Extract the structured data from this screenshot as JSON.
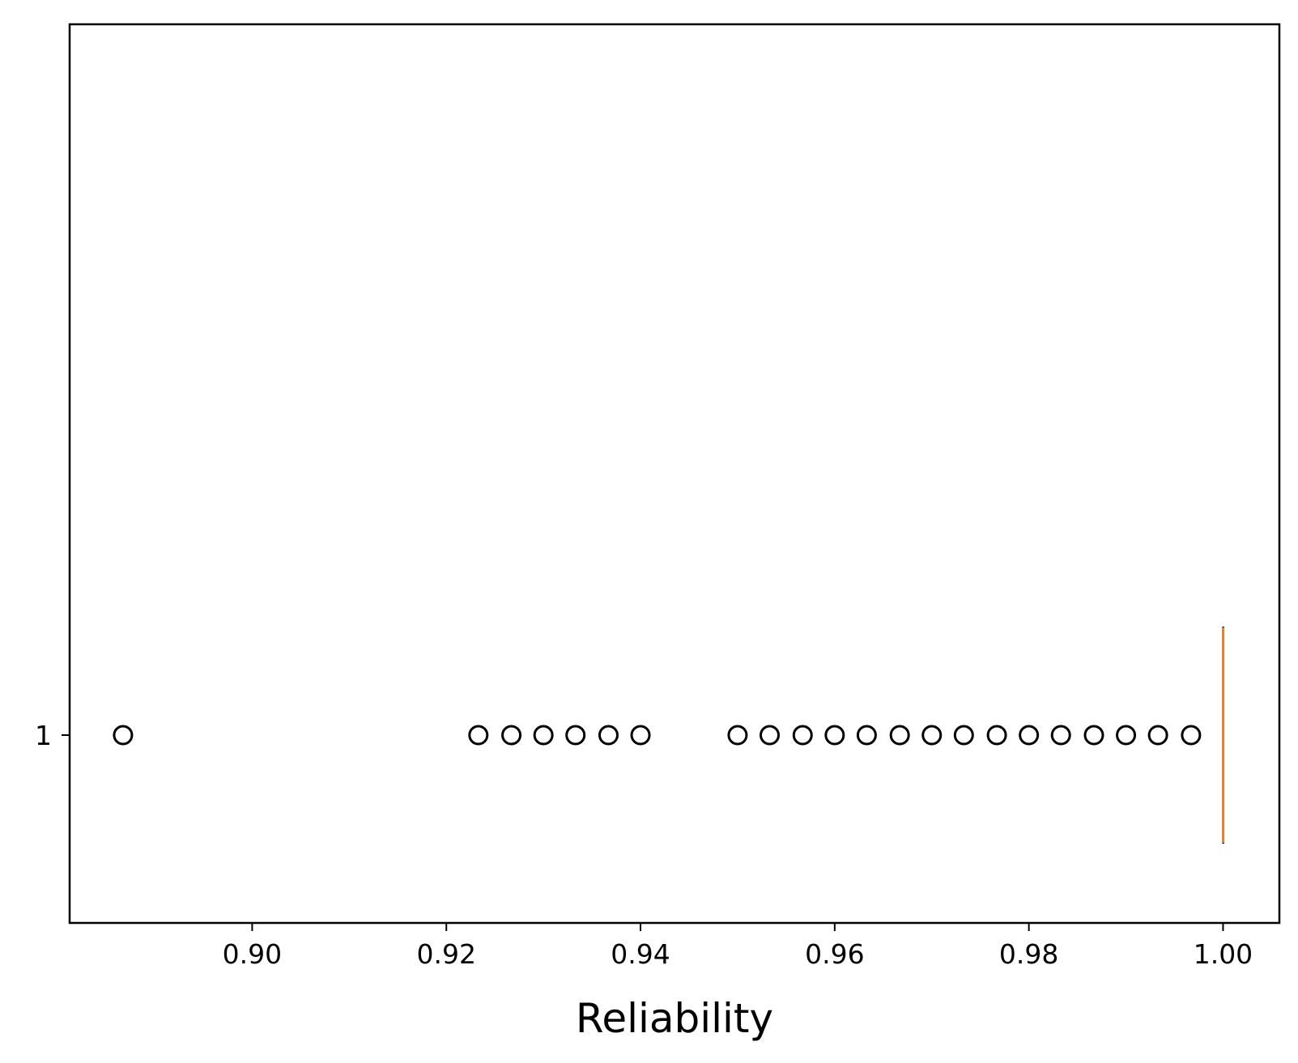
{
  "chart_data": {
    "type": "boxplot",
    "orientation": "horizontal",
    "xlabel": "Reliability",
    "ylabel": "",
    "title": "",
    "xlim": [
      0.8812,
      1.0058
    ],
    "x_ticks": [
      0.9,
      0.92,
      0.94,
      0.96,
      0.98,
      1.0
    ],
    "x_tick_labels": [
      "0.90",
      "0.92",
      "0.94",
      "0.96",
      "0.98",
      "1.00"
    ],
    "categories": [
      "1"
    ],
    "box": {
      "category": "1",
      "q1": 1.0,
      "median": 1.0,
      "q3": 1.0,
      "whisker_low": 1.0,
      "whisker_high": 1.0
    },
    "outliers": [
      0.8867,
      0.9233,
      0.9267,
      0.93,
      0.9333,
      0.9367,
      0.94,
      0.95,
      0.9533,
      0.9567,
      0.96,
      0.9633,
      0.9667,
      0.97,
      0.9733,
      0.9767,
      0.98,
      0.9833,
      0.9867,
      0.99,
      0.9933,
      0.9967
    ],
    "grid": false,
    "colors": {
      "median": "#ff7f0e",
      "box": "#000000",
      "outlier": "#000000"
    }
  }
}
